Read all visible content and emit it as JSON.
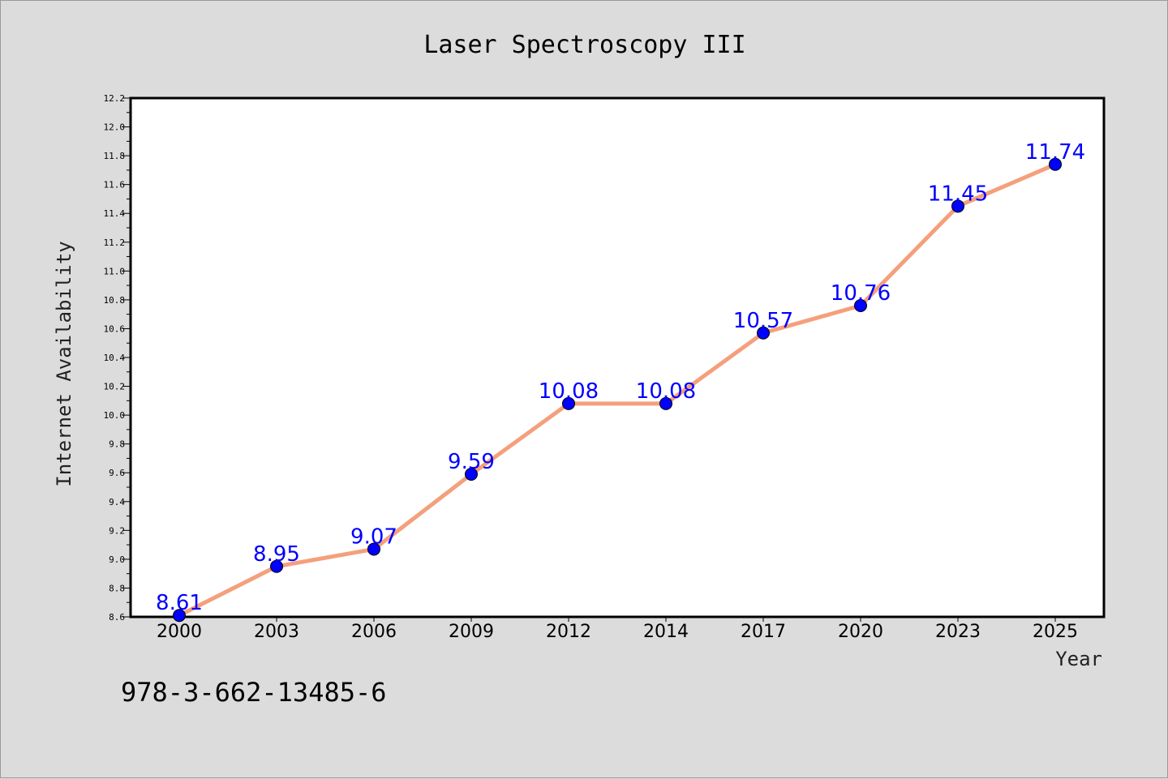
{
  "colors": {
    "background": "#dcdcdc",
    "plot_background": "#ffffff",
    "line": "#f4a07c",
    "marker": "#0000ff",
    "data_label": "#0000ff"
  },
  "footer_text": "978-3-662-13485-6",
  "chart_data": {
    "type": "line",
    "title": "Laser Spectroscopy III",
    "xlabel": "Year",
    "ylabel": "Internet Availability",
    "categories": [
      "2000",
      "2003",
      "2006",
      "2009",
      "2012",
      "2014",
      "2017",
      "2020",
      "2023",
      "2025"
    ],
    "series": [
      {
        "values": [
          8.61,
          8.95,
          9.07,
          9.59,
          10.08,
          10.08,
          10.57,
          10.76,
          11.45,
          11.74
        ],
        "labels": [
          "8.61",
          "8.95",
          "9.07",
          "9.59",
          "10.08",
          "10.08",
          "10.57",
          "10.76",
          "11.45",
          "11.74"
        ]
      }
    ],
    "ylim": [
      8.6,
      12.2
    ],
    "yticks": [
      "8.6",
      "8.8",
      "9.0",
      "9.2",
      "9.4",
      "9.6",
      "9.8",
      "10.0",
      "10.2",
      "10.4",
      "10.6",
      "10.8",
      "11.0",
      "11.2",
      "11.4",
      "11.6",
      "11.8",
      "12.0",
      "12.2"
    ],
    "grid": false,
    "legend": "none"
  }
}
